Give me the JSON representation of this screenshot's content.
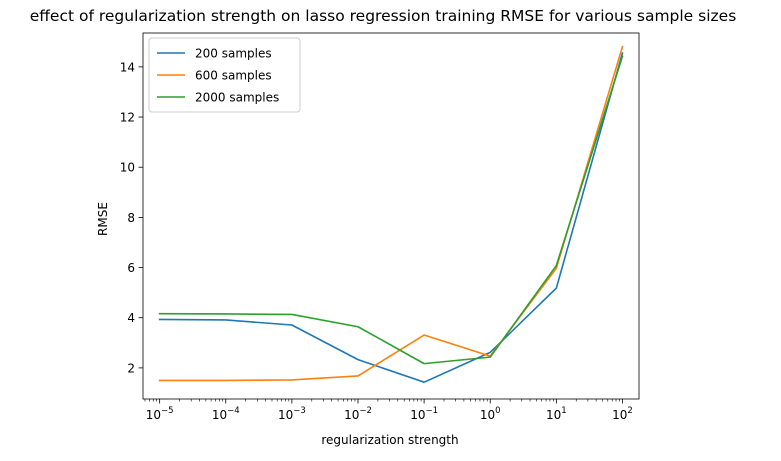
{
  "chart_data": {
    "type": "line",
    "title": "effect of regularization strength on lasso regression training RMSE for various sample sizes",
    "xlabel": "regularization strength",
    "ylabel": "RMSE",
    "xscale": "log",
    "x": [
      1e-05,
      0.0001,
      0.001,
      0.01,
      0.1,
      1,
      10,
      100
    ],
    "xlim": [
      5.6e-06,
      178
    ],
    "ylim": [
      0.76,
      15.35
    ],
    "x_ticks": [
      {
        "value": 1e-05,
        "base": "10",
        "exp": "−5"
      },
      {
        "value": 0.0001,
        "base": "10",
        "exp": "−4"
      },
      {
        "value": 0.001,
        "base": "10",
        "exp": "−3"
      },
      {
        "value": 0.01,
        "base": "10",
        "exp": "−2"
      },
      {
        "value": 0.1,
        "base": "10",
        "exp": "−1"
      },
      {
        "value": 1,
        "base": "10",
        "exp": "0"
      },
      {
        "value": 10,
        "base": "10",
        "exp": "1"
      },
      {
        "value": 100,
        "base": "10",
        "exp": "2"
      }
    ],
    "y_ticks": [
      {
        "value": 2,
        "label": "2"
      },
      {
        "value": 4,
        "label": "4"
      },
      {
        "value": 6,
        "label": "6"
      },
      {
        "value": 8,
        "label": "8"
      },
      {
        "value": 10,
        "label": "10"
      },
      {
        "value": 12,
        "label": "12"
      },
      {
        "value": 14,
        "label": "14"
      }
    ],
    "grid": false,
    "legend_position": "top-left",
    "series": [
      {
        "name": "200 samples",
        "color": "#1f77b4",
        "values": [
          3.93,
          3.91,
          3.71,
          2.33,
          1.43,
          2.62,
          5.18,
          14.55
        ]
      },
      {
        "name": "600 samples",
        "color": "#ff7f0e",
        "values": [
          1.5,
          1.5,
          1.52,
          1.68,
          3.31,
          2.47,
          5.97,
          14.8
        ]
      },
      {
        "name": "2000 samples",
        "color": "#2ca02c",
        "values": [
          4.16,
          4.15,
          4.13,
          3.64,
          2.17,
          2.43,
          6.08,
          14.42
        ]
      }
    ]
  }
}
